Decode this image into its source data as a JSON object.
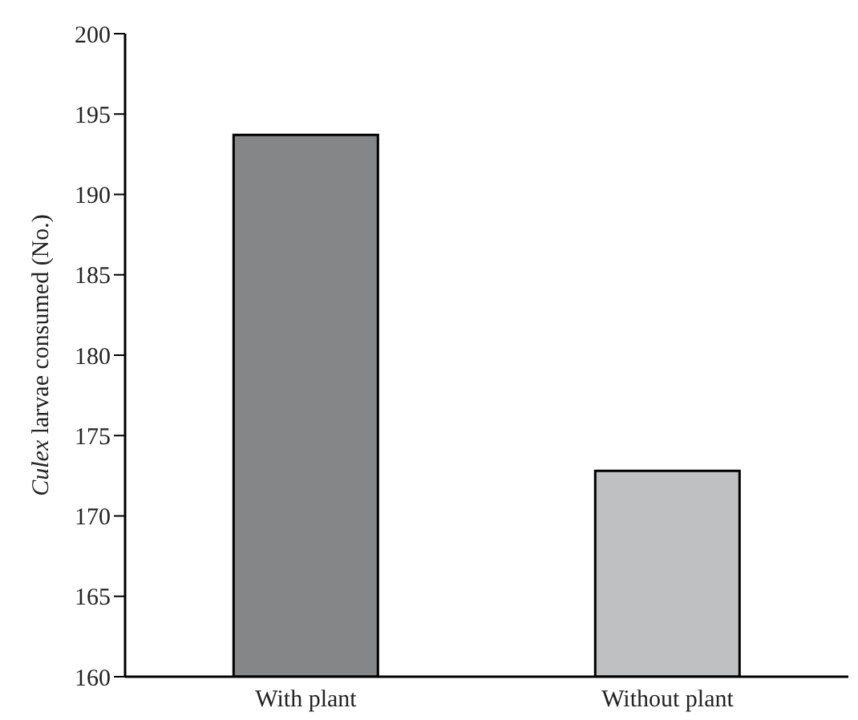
{
  "chart_data": {
    "type": "bar",
    "ylabel": "Culex larvae consumed (No.)",
    "categories": [
      "With plant",
      "Without plant"
    ],
    "values": [
      193.7,
      172.8
    ],
    "colors": [
      "#858688",
      "#bfc0c2"
    ],
    "ylim": [
      160,
      200
    ],
    "yticks": [
      160,
      165,
      170,
      175,
      180,
      185,
      190,
      195,
      200
    ],
    "grid": false
  }
}
